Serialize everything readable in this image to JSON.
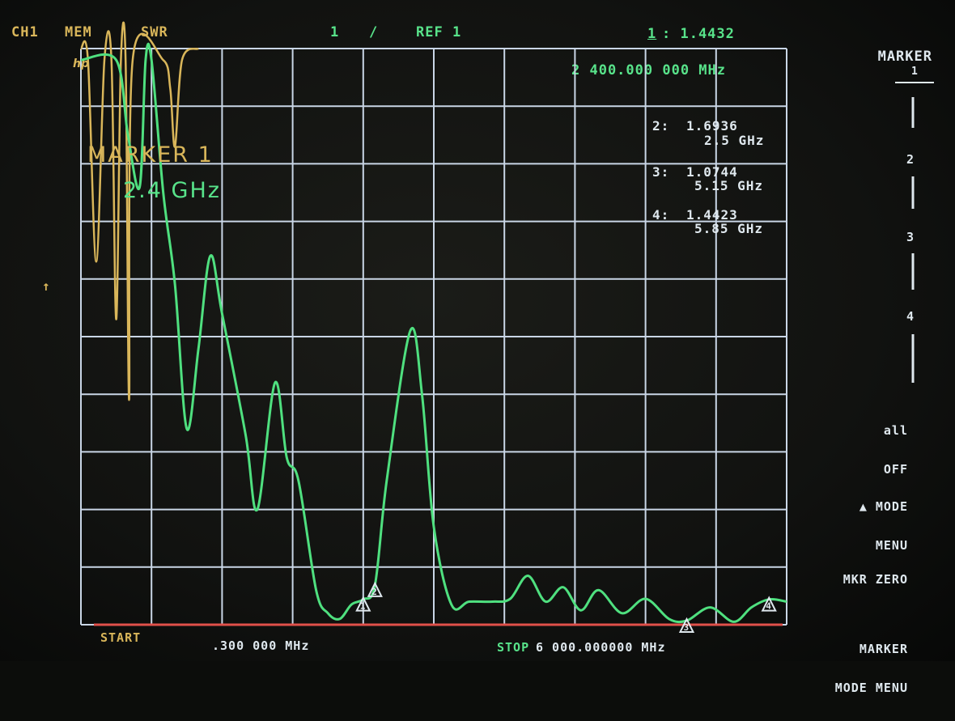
{
  "header": {
    "channel": "CH1",
    "memory": "MEM",
    "format": "SWR",
    "scale": "1",
    "scale_sep": "/",
    "ref": "REF 1",
    "active_marker_num": "1",
    "active_marker_value": ": 1.4432",
    "active_marker_freq": "2 400.000 000 MHz"
  },
  "annotation": {
    "title": "MARKER 1",
    "frequency": "2.4 GHz"
  },
  "markers": [
    {
      "label": "1:",
      "value": "1.4432",
      "freq": "2.4 GHz"
    },
    {
      "label": "2:",
      "value": "1.6936",
      "freq": "2.5 GHz"
    },
    {
      "label": "3:",
      "value": "1.0744",
      "freq": "5.15 GHz"
    },
    {
      "label": "4:",
      "value": "1.4423",
      "freq": "5.85 GHz"
    }
  ],
  "reference_arrow": "↑",
  "footer": {
    "start_label": "START",
    "start_value": ".300 000 MHz",
    "stop_label": "STOP",
    "stop_value": "6 000.000000 MHz"
  },
  "softkeys": {
    "title": "MARKER",
    "m1": "1",
    "m2": "2",
    "m3": "3",
    "m4": "4",
    "all_off_1": "all",
    "all_off_2": "OFF",
    "mode_menu_1": "▲ MODE",
    "mode_menu_2": "MENU",
    "mkr_zero": "MKR ZERO",
    "marker_mode_menu_1": "MARKER",
    "marker_mode_menu_2": "MODE MENU"
  },
  "colors": {
    "grid": "#c9d6e6",
    "memory_trace": "#d9b65a",
    "data_trace": "#4fe07f",
    "baseline": "#e0504a",
    "text_white": "#dfe8ee"
  },
  "chart_data": {
    "type": "line",
    "xlabel": "",
    "ylabel": "",
    "x_unit": "MHz",
    "xlim": [
      0.3,
      6000
    ],
    "ylim": [
      1,
      11
    ],
    "grid": true,
    "series": [
      {
        "name": "",
        "values": [
          [
            0.3,
            10.8
          ],
          [
            300,
            10.8
          ],
          [
            400,
            9.5
          ],
          [
            500,
            8.6
          ],
          [
            550,
            10.8
          ],
          [
            600,
            10.8
          ],
          [
            700,
            8.5
          ],
          [
            800,
            6.9
          ],
          [
            900,
            4.4
          ],
          [
            1000,
            5.8
          ],
          [
            1100,
            7.4
          ],
          [
            1200,
            6.4
          ],
          [
            1400,
            4.3
          ],
          [
            1500,
            3.0
          ],
          [
            1650,
            5.2
          ],
          [
            1750,
            3.9
          ],
          [
            1850,
            3.5
          ],
          [
            2000,
            1.6
          ],
          [
            2100,
            1.2
          ],
          [
            2200,
            1.1
          ],
          [
            2300,
            1.35
          ],
          [
            2400,
            1.44
          ],
          [
            2500,
            1.69
          ],
          [
            2600,
            3.5
          ],
          [
            2800,
            6.1
          ],
          [
            2900,
            5.0
          ],
          [
            3000,
            2.7
          ],
          [
            3150,
            1.35
          ],
          [
            3300,
            1.4
          ],
          [
            3500,
            1.4
          ],
          [
            3650,
            1.45
          ],
          [
            3800,
            1.85
          ],
          [
            3950,
            1.4
          ],
          [
            4100,
            1.65
          ],
          [
            4250,
            1.25
          ],
          [
            4400,
            1.6
          ],
          [
            4600,
            1.2
          ],
          [
            4800,
            1.45
          ],
          [
            5000,
            1.1
          ],
          [
            5150,
            1.07
          ],
          [
            5350,
            1.3
          ],
          [
            5550,
            1.05
          ],
          [
            5700,
            1.3
          ],
          [
            5850,
            1.44
          ],
          [
            6000,
            1.4
          ]
        ]
      }
    ],
    "memory_trace": [
      [
        0.3,
        11
      ],
      [
        60,
        10.8
      ],
      [
        130,
        7.3
      ],
      [
        200,
        10.8
      ],
      [
        260,
        10.8
      ],
      [
        300,
        6.3
      ],
      [
        340,
        10.8
      ],
      [
        380,
        10.8
      ],
      [
        410,
        4.9
      ],
      [
        440,
        10.8
      ],
      [
        700,
        10.8
      ],
      [
        760,
        10.3
      ],
      [
        800,
        9.3
      ],
      [
        860,
        10.8
      ],
      [
        1000,
        11
      ]
    ],
    "marker_points": [
      {
        "n": "1",
        "x": 2400
      },
      {
        "n": "2",
        "x": 2500
      },
      {
        "n": "3",
        "x": 5150
      },
      {
        "n": "4",
        "x": 5850
      }
    ]
  }
}
